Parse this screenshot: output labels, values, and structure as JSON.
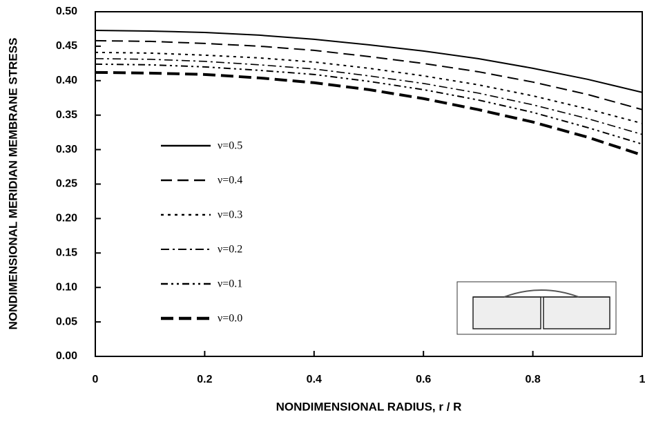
{
  "chart_data": {
    "type": "line",
    "xlabel": "NONDIMENSIONAL RADIUS, r / R",
    "ylabel": "NONDIMENSIONAL MERIDIAN MEMBRANE STRESS",
    "x": [
      0,
      0.1,
      0.2,
      0.3,
      0.4,
      0.5,
      0.6,
      0.7,
      0.8,
      0.9,
      1
    ],
    "series": [
      {
        "name": "ν=0.5",
        "color": "#000000",
        "values": [
          0.473,
          0.472,
          0.47,
          0.466,
          0.46,
          0.452,
          0.443,
          0.432,
          0.418,
          0.402,
          0.383
        ]
      },
      {
        "name": "ν=0.4",
        "color": "#000000",
        "values": [
          0.458,
          0.457,
          0.454,
          0.45,
          0.444,
          0.435,
          0.425,
          0.413,
          0.398,
          0.38,
          0.358
        ]
      },
      {
        "name": "ν=0.3",
        "color": "#000000",
        "values": [
          0.441,
          0.44,
          0.437,
          0.433,
          0.427,
          0.418,
          0.407,
          0.394,
          0.378,
          0.359,
          0.338
        ]
      },
      {
        "name": "ν=0.2",
        "color": "#000000",
        "values": [
          0.432,
          0.431,
          0.428,
          0.423,
          0.417,
          0.407,
          0.396,
          0.382,
          0.365,
          0.345,
          0.322
        ]
      },
      {
        "name": "ν=0.1",
        "color": "#000000",
        "values": [
          0.424,
          0.423,
          0.42,
          0.415,
          0.409,
          0.399,
          0.387,
          0.372,
          0.354,
          0.332,
          0.308
        ]
      },
      {
        "name": "ν=0.0",
        "color": "#000000",
        "values": [
          0.412,
          0.411,
          0.409,
          0.404,
          0.397,
          0.387,
          0.374,
          0.358,
          0.34,
          0.318,
          0.292
        ]
      }
    ],
    "xlim": [
      0,
      1
    ],
    "xticks": [
      0,
      0.2,
      0.4,
      0.6,
      0.8,
      1
    ],
    "ylim": [
      0,
      0.5
    ],
    "yticks": [
      {
        "value": 0,
        "label": "0.00"
      },
      {
        "value": 0.05,
        "label": "0.05"
      },
      {
        "value": 0.1,
        "label": "0.10"
      },
      {
        "value": 0.15,
        "label": "0.15"
      },
      {
        "value": 0.2,
        "label": "0.20"
      },
      {
        "value": 0.25,
        "label": "0.25"
      },
      {
        "value": 0.3,
        "label": "0.30"
      },
      {
        "value": 0.35,
        "label": "0.35"
      },
      {
        "value": 0.4,
        "label": "0.40"
      },
      {
        "value": 0.45,
        "label": "0.45"
      },
      {
        "value": 0.5,
        "label": "0.50"
      }
    ],
    "grid": false
  }
}
